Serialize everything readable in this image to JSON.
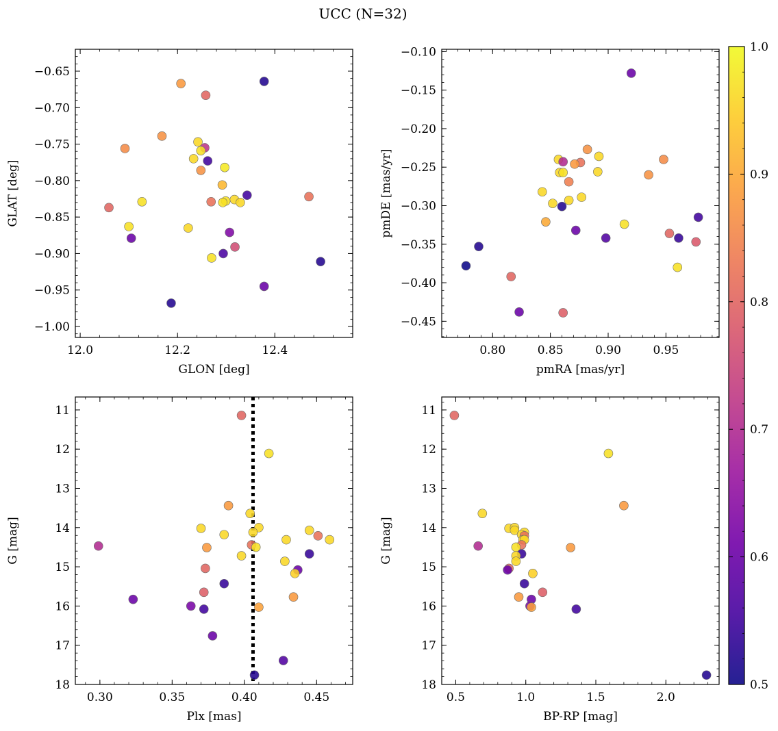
{
  "figure": {
    "title": "UCC (N=32)"
  },
  "colorbar": {
    "min": 0.5,
    "max": 1.0,
    "ticks": [
      "0.5",
      "0.6",
      "0.7",
      "0.8",
      "0.9",
      "1.0"
    ],
    "colormap": "plasma",
    "stops": [
      "#0d0887",
      "#46039f",
      "#7201a8",
      "#9c179e",
      "#bd3786",
      "#d8576b",
      "#ed7953",
      "#fb9f3a",
      "#fdca26",
      "#f0f921"
    ]
  },
  "chart_data": [
    {
      "id": "glon_glat",
      "type": "scatter",
      "xlabel": "GLON [deg]",
      "ylabel": "GLAT [deg]",
      "xlim": [
        11.99,
        12.56
      ],
      "ylim": [
        -1.015,
        -0.62
      ],
      "y_inverted": false,
      "xticks": [
        12.0,
        12.2,
        12.4
      ],
      "xtick_labels": [
        "12.0",
        "12.2",
        "12.4"
      ],
      "yticks": [
        -0.65,
        -0.7,
        -0.75,
        -0.8,
        -0.85,
        -0.9,
        -0.95,
        -1.0
      ],
      "ytick_labels": [
        "−0.65",
        "−0.70",
        "−0.75",
        "−0.80",
        "−0.85",
        "−0.90",
        "−0.95",
        "−1.00"
      ],
      "points": [
        {
          "x": 12.207,
          "y": -0.667,
          "c": 0.88
        },
        {
          "x": 12.258,
          "y": -0.683,
          "c": 0.8
        },
        {
          "x": 12.378,
          "y": -0.664,
          "c": 0.52
        },
        {
          "x": 12.168,
          "y": -0.739,
          "c": 0.87
        },
        {
          "x": 12.092,
          "y": -0.756,
          "c": 0.86
        },
        {
          "x": 12.242,
          "y": -0.747,
          "c": 0.96
        },
        {
          "x": 12.256,
          "y": -0.755,
          "c": 0.72
        },
        {
          "x": 12.248,
          "y": -0.759,
          "c": 0.97
        },
        {
          "x": 12.233,
          "y": -0.77,
          "c": 0.96
        },
        {
          "x": 12.262,
          "y": -0.773,
          "c": 0.55
        },
        {
          "x": 12.297,
          "y": -0.782,
          "c": 0.98
        },
        {
          "x": 12.248,
          "y": -0.786,
          "c": 0.87
        },
        {
          "x": 12.292,
          "y": -0.806,
          "c": 0.92
        },
        {
          "x": 12.343,
          "y": -0.82,
          "c": 0.55
        },
        {
          "x": 12.47,
          "y": -0.822,
          "c": 0.82
        },
        {
          "x": 12.317,
          "y": -0.826,
          "c": 0.96
        },
        {
          "x": 12.299,
          "y": -0.828,
          "c": 0.97
        },
        {
          "x": 12.269,
          "y": -0.829,
          "c": 0.82
        },
        {
          "x": 12.329,
          "y": -0.83,
          "c": 0.96
        },
        {
          "x": 12.293,
          "y": -0.83,
          "c": 0.97
        },
        {
          "x": 12.127,
          "y": -0.829,
          "c": 0.97
        },
        {
          "x": 12.059,
          "y": -0.837,
          "c": 0.8
        },
        {
          "x": 12.1,
          "y": -0.863,
          "c": 0.97
        },
        {
          "x": 12.222,
          "y": -0.865,
          "c": 0.96
        },
        {
          "x": 12.307,
          "y": -0.871,
          "c": 0.63
        },
        {
          "x": 12.105,
          "y": -0.879,
          "c": 0.6
        },
        {
          "x": 12.318,
          "y": -0.891,
          "c": 0.76
        },
        {
          "x": 12.294,
          "y": -0.9,
          "c": 0.56
        },
        {
          "x": 12.27,
          "y": -0.906,
          "c": 0.97
        },
        {
          "x": 12.494,
          "y": -0.911,
          "c": 0.52
        },
        {
          "x": 12.378,
          "y": -0.945,
          "c": 0.6
        },
        {
          "x": 12.187,
          "y": -0.968,
          "c": 0.52
        }
      ]
    },
    {
      "id": "pm",
      "type": "scatter",
      "xlabel": "pmRA [mas/yr]",
      "ylabel": "pmDE [mas/yr]",
      "xlim": [
        0.756,
        0.996
      ],
      "ylim": [
        -0.471,
        -0.097
      ],
      "y_inverted": false,
      "xticks": [
        0.8,
        0.85,
        0.9,
        0.95
      ],
      "xtick_labels": [
        "0.80",
        "0.85",
        "0.90",
        "0.95"
      ],
      "yticks": [
        -0.1,
        -0.15,
        -0.2,
        -0.25,
        -0.3,
        -0.35,
        -0.4,
        -0.45
      ],
      "ytick_labels": [
        "−0.10",
        "−0.15",
        "−0.20",
        "−0.25",
        "−0.30",
        "−0.35",
        "−0.40",
        "−0.45"
      ],
      "points": [
        {
          "x": 0.92,
          "y": -0.128,
          "c": 0.6
        },
        {
          "x": 0.882,
          "y": -0.227,
          "c": 0.87
        },
        {
          "x": 0.892,
          "y": -0.236,
          "c": 0.96
        },
        {
          "x": 0.857,
          "y": -0.24,
          "c": 0.96
        },
        {
          "x": 0.948,
          "y": -0.24,
          "c": 0.86
        },
        {
          "x": 0.861,
          "y": -0.243,
          "c": 0.7
        },
        {
          "x": 0.876,
          "y": -0.244,
          "c": 0.82
        },
        {
          "x": 0.871,
          "y": -0.246,
          "c": 0.88
        },
        {
          "x": 0.858,
          "y": -0.257,
          "c": 0.96
        },
        {
          "x": 0.861,
          "y": -0.257,
          "c": 0.97
        },
        {
          "x": 0.891,
          "y": -0.256,
          "c": 0.96
        },
        {
          "x": 0.935,
          "y": -0.26,
          "c": 0.87
        },
        {
          "x": 0.866,
          "y": -0.269,
          "c": 0.84
        },
        {
          "x": 0.843,
          "y": -0.282,
          "c": 0.96
        },
        {
          "x": 0.877,
          "y": -0.289,
          "c": 0.96
        },
        {
          "x": 0.866,
          "y": -0.293,
          "c": 0.96
        },
        {
          "x": 0.852,
          "y": -0.297,
          "c": 0.96
        },
        {
          "x": 0.86,
          "y": -0.301,
          "c": 0.52
        },
        {
          "x": 0.978,
          "y": -0.315,
          "c": 0.55
        },
        {
          "x": 0.846,
          "y": -0.321,
          "c": 0.9
        },
        {
          "x": 0.914,
          "y": -0.324,
          "c": 0.97
        },
        {
          "x": 0.872,
          "y": -0.332,
          "c": 0.6
        },
        {
          "x": 0.953,
          "y": -0.336,
          "c": 0.8
        },
        {
          "x": 0.898,
          "y": -0.342,
          "c": 0.57
        },
        {
          "x": 0.961,
          "y": -0.342,
          "c": 0.54
        },
        {
          "x": 0.976,
          "y": -0.347,
          "c": 0.78
        },
        {
          "x": 0.788,
          "y": -0.353,
          "c": 0.52
        },
        {
          "x": 0.777,
          "y": -0.378,
          "c": 0.5
        },
        {
          "x": 0.96,
          "y": -0.38,
          "c": 0.97
        },
        {
          "x": 0.816,
          "y": -0.392,
          "c": 0.8
        },
        {
          "x": 0.823,
          "y": -0.438,
          "c": 0.6
        },
        {
          "x": 0.861,
          "y": -0.439,
          "c": 0.79
        }
      ]
    },
    {
      "id": "plx_g",
      "type": "scatter",
      "xlabel": "Plx [mas]",
      "ylabel": "G [mag]",
      "xlim": [
        0.283,
        0.475
      ],
      "ylim": [
        10.67,
        18.0
      ],
      "y_inverted": true,
      "vline": {
        "x": 0.406,
        "style": "dotted"
      },
      "xticks": [
        0.3,
        0.35,
        0.4,
        0.45
      ],
      "xtick_labels": [
        "0.30",
        "0.35",
        "0.40",
        "0.45"
      ],
      "yticks": [
        11,
        12,
        13,
        14,
        15,
        16,
        17,
        18
      ],
      "ytick_labels": [
        "11",
        "12",
        "13",
        "14",
        "15",
        "16",
        "17",
        "18"
      ],
      "points": [
        {
          "x": 0.398,
          "y": 11.14,
          "c": 0.8
        },
        {
          "x": 0.417,
          "y": 12.11,
          "c": 0.97
        },
        {
          "x": 0.389,
          "y": 13.44,
          "c": 0.88
        },
        {
          "x": 0.404,
          "y": 13.64,
          "c": 0.96
        },
        {
          "x": 0.37,
          "y": 14.02,
          "c": 0.96
        },
        {
          "x": 0.41,
          "y": 14.0,
          "c": 0.96
        },
        {
          "x": 0.445,
          "y": 14.07,
          "c": 0.96
        },
        {
          "x": 0.406,
          "y": 14.12,
          "c": 0.96
        },
        {
          "x": 0.386,
          "y": 14.18,
          "c": 0.96
        },
        {
          "x": 0.451,
          "y": 14.21,
          "c": 0.82
        },
        {
          "x": 0.429,
          "y": 14.31,
          "c": 0.96
        },
        {
          "x": 0.459,
          "y": 14.31,
          "c": 0.96
        },
        {
          "x": 0.405,
          "y": 14.44,
          "c": 0.82
        },
        {
          "x": 0.408,
          "y": 14.5,
          "c": 0.97
        },
        {
          "x": 0.374,
          "y": 14.51,
          "c": 0.88
        },
        {
          "x": 0.299,
          "y": 14.47,
          "c": 0.7
        },
        {
          "x": 0.445,
          "y": 14.67,
          "c": 0.54
        },
        {
          "x": 0.398,
          "y": 14.72,
          "c": 0.96
        },
        {
          "x": 0.428,
          "y": 14.86,
          "c": 0.96
        },
        {
          "x": 0.373,
          "y": 15.04,
          "c": 0.8
        },
        {
          "x": 0.437,
          "y": 15.08,
          "c": 0.6
        },
        {
          "x": 0.435,
          "y": 15.17,
          "c": 0.95
        },
        {
          "x": 0.386,
          "y": 15.43,
          "c": 0.54
        },
        {
          "x": 0.372,
          "y": 15.65,
          "c": 0.79
        },
        {
          "x": 0.434,
          "y": 15.77,
          "c": 0.88
        },
        {
          "x": 0.323,
          "y": 15.83,
          "c": 0.6
        },
        {
          "x": 0.363,
          "y": 16.0,
          "c": 0.62
        },
        {
          "x": 0.41,
          "y": 16.03,
          "c": 0.89
        },
        {
          "x": 0.372,
          "y": 16.08,
          "c": 0.55
        },
        {
          "x": 0.378,
          "y": 16.76,
          "c": 0.6
        },
        {
          "x": 0.427,
          "y": 17.39,
          "c": 0.57
        },
        {
          "x": 0.407,
          "y": 17.76,
          "c": 0.52
        }
      ]
    },
    {
      "id": "cmd",
      "type": "scatter",
      "xlabel": "BP-RP [mag]",
      "ylabel": "G [mag]",
      "xlim": [
        0.4,
        2.38
      ],
      "ylim": [
        10.67,
        18.0
      ],
      "y_inverted": true,
      "xticks": [
        0.5,
        1.0,
        1.5,
        2.0
      ],
      "xtick_labels": [
        "0.5",
        "1.0",
        "1.5",
        "2.0"
      ],
      "yticks": [
        11,
        12,
        13,
        14,
        15,
        16,
        17,
        18
      ],
      "ytick_labels": [
        "11",
        "12",
        "13",
        "14",
        "15",
        "16",
        "17",
        "18"
      ],
      "points": [
        {
          "x": 0.49,
          "y": 11.14,
          "c": 0.8
        },
        {
          "x": 1.59,
          "y": 12.11,
          "c": 0.97
        },
        {
          "x": 1.7,
          "y": 13.44,
          "c": 0.88
        },
        {
          "x": 0.69,
          "y": 13.64,
          "c": 0.96
        },
        {
          "x": 0.88,
          "y": 14.02,
          "c": 0.96
        },
        {
          "x": 0.92,
          "y": 14.0,
          "c": 0.96
        },
        {
          "x": 0.92,
          "y": 14.07,
          "c": 0.96
        },
        {
          "x": 0.99,
          "y": 14.12,
          "c": 0.96
        },
        {
          "x": 0.97,
          "y": 14.18,
          "c": 0.96
        },
        {
          "x": 0.99,
          "y": 14.21,
          "c": 0.82
        },
        {
          "x": 0.98,
          "y": 14.31,
          "c": 0.96
        },
        {
          "x": 0.99,
          "y": 14.31,
          "c": 0.96
        },
        {
          "x": 0.97,
          "y": 14.44,
          "c": 0.82
        },
        {
          "x": 0.93,
          "y": 14.5,
          "c": 0.97
        },
        {
          "x": 1.32,
          "y": 14.51,
          "c": 0.88
        },
        {
          "x": 0.66,
          "y": 14.47,
          "c": 0.7
        },
        {
          "x": 0.97,
          "y": 14.67,
          "c": 0.54
        },
        {
          "x": 0.93,
          "y": 14.72,
          "c": 0.96
        },
        {
          "x": 0.93,
          "y": 14.86,
          "c": 0.96
        },
        {
          "x": 0.88,
          "y": 15.04,
          "c": 0.8
        },
        {
          "x": 0.87,
          "y": 15.08,
          "c": 0.6
        },
        {
          "x": 1.05,
          "y": 15.17,
          "c": 0.95
        },
        {
          "x": 0.99,
          "y": 15.43,
          "c": 0.54
        },
        {
          "x": 1.12,
          "y": 15.65,
          "c": 0.79
        },
        {
          "x": 0.95,
          "y": 15.77,
          "c": 0.88
        },
        {
          "x": 1.04,
          "y": 15.83,
          "c": 0.6
        },
        {
          "x": 1.03,
          "y": 16.0,
          "c": 0.62
        },
        {
          "x": 1.04,
          "y": 16.03,
          "c": 0.89
        },
        {
          "x": 1.36,
          "y": 16.08,
          "c": 0.55
        },
        {
          "x": 2.29,
          "y": 17.76,
          "c": 0.52
        }
      ]
    }
  ]
}
